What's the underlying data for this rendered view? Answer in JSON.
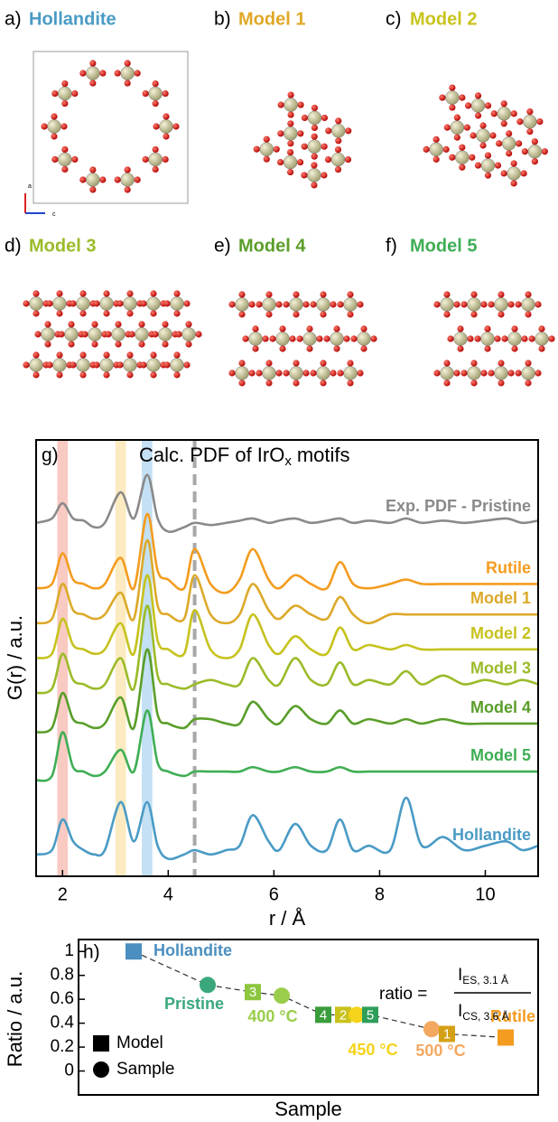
{
  "structures": [
    {
      "tag": "a)",
      "name": "Hollandite",
      "color": "#4a9bc5",
      "axes": [
        "a",
        "c"
      ]
    },
    {
      "tag": "b)",
      "name": "Model 1",
      "color": "#e0a828"
    },
    {
      "tag": "c)",
      "name": "Model 2",
      "color": "#c9c41c"
    },
    {
      "tag": "d)",
      "name": "Model 3",
      "color": "#9bbb2a"
    },
    {
      "tag": "e)",
      "name": "Model 4",
      "color": "#5a9e2a"
    },
    {
      "tag": "f)",
      "name": "Model 5",
      "color": "#3fae55"
    }
  ],
  "chart_data": [
    {
      "type": "line",
      "panel": "g)",
      "title": [
        "Calc. PDF of IrO",
        "x",
        "motifs"
      ],
      "xlabel": "r / Å",
      "ylabel": "G(r) / a.u.",
      "xlim": [
        1.5,
        11
      ],
      "xticks": [
        2,
        4,
        6,
        8,
        10
      ],
      "ylim": [
        0,
        100
      ],
      "bands": [
        {
          "from": 1.9,
          "to": 2.1,
          "color": "#f6b3a8"
        },
        {
          "from": 3.0,
          "to": 3.2,
          "color": "#fbe3a6"
        },
        {
          "from": 3.5,
          "to": 3.7,
          "color": "#a9d3f0"
        }
      ],
      "vline": 4.5,
      "x": [
        1.5,
        1.8,
        2.0,
        2.2,
        2.4,
        2.6,
        2.8,
        3.1,
        3.35,
        3.6,
        3.8,
        4.0,
        4.3,
        4.5,
        4.8,
        5.1,
        5.35,
        5.6,
        5.9,
        6.1,
        6.4,
        6.7,
        7.0,
        7.25,
        7.5,
        7.8,
        8.2,
        8.5,
        8.8,
        9.2,
        9.6,
        10.0,
        10.4,
        10.7,
        11.0
      ],
      "series": [
        {
          "name": "Exp. PDF - Pristine",
          "color": "#8a8a8a",
          "values": [
            81,
            82,
            85.5,
            82,
            81.5,
            80,
            81,
            88,
            82,
            92,
            82,
            79,
            80,
            81,
            80.5,
            81,
            81.5,
            82,
            81,
            81.5,
            82,
            81,
            81.5,
            82,
            81,
            81.5,
            81,
            82,
            81,
            81.5,
            81,
            81.5,
            82,
            81,
            81.5
          ]
        },
        {
          "name": "Rutile",
          "color": "#f39c1f",
          "values": [
            66,
            67,
            74,
            68,
            67,
            66,
            67,
            73,
            66,
            83,
            70,
            68,
            66,
            75,
            67,
            65,
            68,
            75,
            68,
            66,
            69,
            67,
            66,
            72,
            67,
            66,
            67,
            68,
            67,
            67,
            67,
            67,
            67,
            67,
            67
          ]
        },
        {
          "name": "Model 1",
          "color": "#dcaa2a",
          "values": [
            58,
            59,
            67,
            61,
            60,
            59,
            60,
            65,
            59,
            77,
            62,
            60,
            59,
            69,
            60,
            58,
            60,
            67,
            61,
            59,
            62,
            60,
            59,
            64,
            60,
            58,
            60,
            60,
            60,
            60,
            60,
            60,
            60,
            60,
            60
          ]
        },
        {
          "name": "Model 2",
          "color": "#c6c21e",
          "values": [
            50,
            51,
            59,
            53,
            52,
            51,
            52,
            58,
            51,
            69,
            54,
            52,
            51,
            61,
            52,
            50,
            52,
            60,
            53,
            51,
            55,
            52,
            51,
            57,
            52,
            53,
            52,
            53,
            52,
            52,
            52,
            52,
            52,
            52,
            52
          ]
        },
        {
          "name": "Model 3",
          "color": "#9bbb2a",
          "values": [
            42,
            43,
            51,
            45,
            44,
            43,
            44,
            50,
            43,
            62,
            46,
            44,
            43,
            44,
            45,
            44,
            44,
            50,
            45,
            44,
            50,
            45,
            44,
            49,
            44,
            45,
            44,
            47,
            44,
            46,
            44,
            45,
            44,
            45,
            44
          ]
        },
        {
          "name": "Model 4",
          "color": "#5a9e2a",
          "values": [
            33,
            34,
            42,
            36,
            35,
            34,
            35,
            41,
            34,
            52,
            37,
            35,
            34,
            36,
            36,
            35,
            35,
            40,
            36,
            35,
            39,
            36,
            35,
            38,
            35,
            36,
            35,
            36,
            35,
            36,
            35,
            35,
            35,
            35,
            35
          ]
        },
        {
          "name": "Model 5",
          "color": "#3fae55",
          "values": [
            22,
            23,
            33,
            25,
            24,
            23,
            24,
            29,
            24,
            38,
            26,
            24,
            23,
            24,
            24,
            24,
            24,
            25,
            24,
            24,
            25,
            24,
            24,
            25,
            24,
            24,
            24,
            24,
            24,
            24,
            24,
            24,
            24,
            24,
            24
          ]
        },
        {
          "name": "Hollandite",
          "color": "#4a9bc5",
          "values": [
            5,
            6,
            13,
            8,
            6,
            5,
            6,
            17,
            8,
            17,
            7,
            4,
            5,
            6,
            5,
            6,
            7,
            14,
            8,
            6,
            12,
            7,
            6,
            13,
            6,
            7,
            6,
            18,
            7,
            9,
            6,
            7,
            8,
            6,
            7
          ]
        }
      ]
    },
    {
      "type": "scatter",
      "panel": "h)",
      "xlabel": "Sample",
      "ylabel": "Ratio / a.u.",
      "ylim": [
        -0.2,
        1.1
      ],
      "yticks": [
        0,
        0.2,
        0.4,
        0.6,
        0.8,
        1
      ],
      "points": [
        {
          "name": "Hollandite",
          "shape": "square",
          "color": "#4a8fc0",
          "value": 1.0
        },
        {
          "name": "Pristine",
          "shape": "circle",
          "color": "#3aa87c",
          "value": 0.72
        },
        {
          "name": "3",
          "shape": "square",
          "color": "#8dc63f",
          "value": 0.66
        },
        {
          "name": "400 °C",
          "shape": "circle",
          "color": "#9acd4b",
          "value": 0.63
        },
        {
          "name": "4",
          "shape": "square",
          "color": "#3a9c3a",
          "value": 0.47
        },
        {
          "name": "2",
          "shape": "square",
          "color": "#c9c21c",
          "value": 0.47
        },
        {
          "name": "450 °C",
          "shape": "circle",
          "color": "#f5d31a",
          "value": 0.47
        },
        {
          "name": "5",
          "shape": "square",
          "color": "#2e9e5a",
          "value": 0.47
        },
        {
          "name": "500 °C",
          "shape": "circle",
          "color": "#f3a860",
          "value": 0.35
        },
        {
          "name": "1",
          "shape": "square",
          "color": "#d4a017",
          "value": 0.31
        },
        {
          "name": "Rutile",
          "shape": "square",
          "color": "#f39c1f",
          "value": 0.28
        }
      ],
      "legend": [
        {
          "label": "Model",
          "shape": "square"
        },
        {
          "label": "Sample",
          "shape": "circle"
        }
      ],
      "formula": {
        "lhs": "ratio =",
        "num": [
          "I",
          "ES, 3.1 Å"
        ],
        "den": [
          "I",
          "CS, 3.6 Å"
        ]
      }
    }
  ]
}
